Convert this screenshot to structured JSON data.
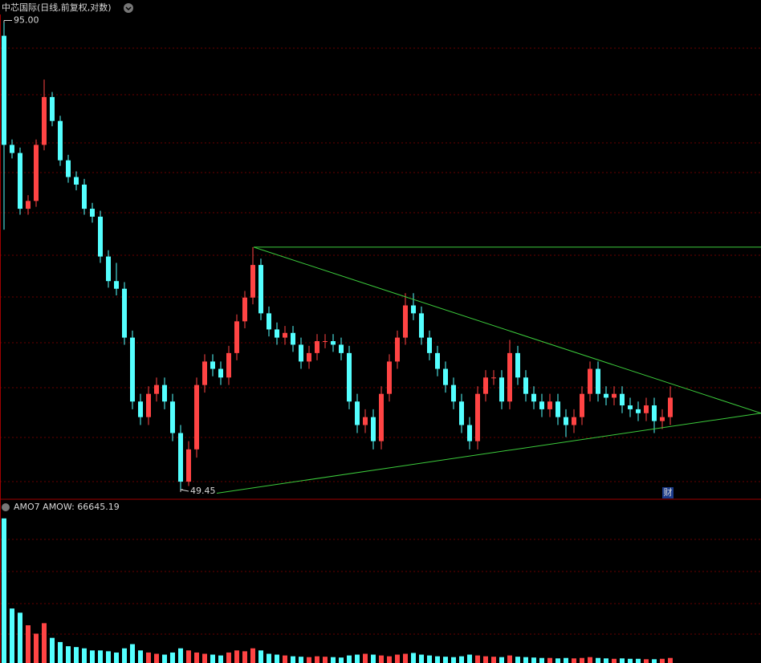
{
  "chart_data": {
    "type": "candlestick",
    "title": "中芯国际(日线,前复权,对数)",
    "log_scale": true,
    "ylim": [
      48.9,
      95.8
    ],
    "up_color": "#ff4444",
    "down_color": "#54ffff",
    "ohlc": [
      [
        93,
        95,
        71,
        79.9
      ],
      [
        79.9,
        80.5,
        78.4,
        79.0
      ],
      [
        79.0,
        79.6,
        72.5,
        73.1
      ],
      [
        73.1,
        74.5,
        72.5,
        73.9
      ],
      [
        73.9,
        80.5,
        73.3,
        79.9
      ],
      [
        79.9,
        87.5,
        79.3,
        85.4
      ],
      [
        85.4,
        86.0,
        82.0,
        82.6
      ],
      [
        82.6,
        83.2,
        77.6,
        78.2
      ],
      [
        78.2,
        78.8,
        75.8,
        76.4
      ],
      [
        76.4,
        77.0,
        75.0,
        75.6
      ],
      [
        75.6,
        76.2,
        72.5,
        73.1
      ],
      [
        73.1,
        73.7,
        71.7,
        72.3
      ],
      [
        72.3,
        72.9,
        67.8,
        68.4
      ],
      [
        68.4,
        69.0,
        65.5,
        66.1
      ],
      [
        66.1,
        67.8,
        64.8,
        65.4
      ],
      [
        65.4,
        66.0,
        60.5,
        61.1
      ],
      [
        61.1,
        61.7,
        55.3,
        55.9
      ],
      [
        55.9,
        56.5,
        54.1,
        54.7
      ],
      [
        54.7,
        57.1,
        54.1,
        56.5
      ],
      [
        56.5,
        57.8,
        55.9,
        57.2
      ],
      [
        57.2,
        57.8,
        55.3,
        55.9
      ],
      [
        55.9,
        56.5,
        52.9,
        53.5
      ],
      [
        53.5,
        54.1,
        49.45,
        50.0
      ],
      [
        50.0,
        52.9,
        49.7,
        52.3
      ],
      [
        52.3,
        57.8,
        51.7,
        57.2
      ],
      [
        57.2,
        59.7,
        56.6,
        59.1
      ],
      [
        59.1,
        59.7,
        57.9,
        58.5
      ],
      [
        58.5,
        59.1,
        57.2,
        57.8
      ],
      [
        57.8,
        60.4,
        57.2,
        59.8
      ],
      [
        59.8,
        63.1,
        59.2,
        62.5
      ],
      [
        62.5,
        65.2,
        61.9,
        64.6
      ],
      [
        64.6,
        69.3,
        64.0,
        67.6
      ],
      [
        67.6,
        68.2,
        62.6,
        63.2
      ],
      [
        63.2,
        63.8,
        61.2,
        61.8
      ],
      [
        61.8,
        62.4,
        60.5,
        61.1
      ],
      [
        61.1,
        62.1,
        60.5,
        61.5
      ],
      [
        61.5,
        62.1,
        59.9,
        60.5
      ],
      [
        60.5,
        61.1,
        58.5,
        59.1
      ],
      [
        59.1,
        60.4,
        58.5,
        59.8
      ],
      [
        59.8,
        61.4,
        59.2,
        60.8
      ],
      [
        60.8,
        61.4,
        60.2,
        60.8
      ],
      [
        60.8,
        61.4,
        59.9,
        60.5
      ],
      [
        60.5,
        61.1,
        59.2,
        59.8
      ],
      [
        59.8,
        60.4,
        55.3,
        55.9
      ],
      [
        55.9,
        56.5,
        53.5,
        54.1
      ],
      [
        54.1,
        55.3,
        53.5,
        54.7
      ],
      [
        54.7,
        55.3,
        52.3,
        52.9
      ],
      [
        52.9,
        57.1,
        52.3,
        56.5
      ],
      [
        56.5,
        59.7,
        55.9,
        59.1
      ],
      [
        59.1,
        61.7,
        58.5,
        61.1
      ],
      [
        61.1,
        65.0,
        60.5,
        63.9
      ],
      [
        63.9,
        65.0,
        62.6,
        63.2
      ],
      [
        63.2,
        63.8,
        60.5,
        61.1
      ],
      [
        61.1,
        61.7,
        59.2,
        59.8
      ],
      [
        59.8,
        60.4,
        57.9,
        58.5
      ],
      [
        58.5,
        59.1,
        56.6,
        57.2
      ],
      [
        57.2,
        57.8,
        55.3,
        55.9
      ],
      [
        55.9,
        56.5,
        53.5,
        54.1
      ],
      [
        54.1,
        54.7,
        52.3,
        52.9
      ],
      [
        52.9,
        57.1,
        52.3,
        56.5
      ],
      [
        56.5,
        58.4,
        55.9,
        57.8
      ],
      [
        57.8,
        58.4,
        57.2,
        57.8
      ],
      [
        57.8,
        58.4,
        55.3,
        55.9
      ],
      [
        55.9,
        60.9,
        55.3,
        59.8
      ],
      [
        59.8,
        60.4,
        57.2,
        57.8
      ],
      [
        57.8,
        58.4,
        55.9,
        56.5
      ],
      [
        56.5,
        57.1,
        55.3,
        55.9
      ],
      [
        55.9,
        56.5,
        54.7,
        55.3
      ],
      [
        55.3,
        56.5,
        54.7,
        55.9
      ],
      [
        55.9,
        56.5,
        54.1,
        54.7
      ],
      [
        54.7,
        55.3,
        53.2,
        54.1
      ],
      [
        54.1,
        55.3,
        53.5,
        54.7
      ],
      [
        54.7,
        57.1,
        54.1,
        56.5
      ],
      [
        56.5,
        59.1,
        55.9,
        58.5
      ],
      [
        58.5,
        59.1,
        55.9,
        56.5
      ],
      [
        56.5,
        57.1,
        55.6,
        56.2
      ],
      [
        56.2,
        57.1,
        55.6,
        56.5
      ],
      [
        56.5,
        57.1,
        55.0,
        55.6
      ],
      [
        55.6,
        56.2,
        54.7,
        55.3
      ],
      [
        55.3,
        55.9,
        54.4,
        55.0
      ],
      [
        55.0,
        56.2,
        54.4,
        55.6
      ],
      [
        55.6,
        56.2,
        53.5,
        54.4
      ],
      [
        54.4,
        55.3,
        53.8,
        54.7
      ],
      [
        54.7,
        57.1,
        54.1,
        56.2
      ]
    ],
    "annotations": [
      {
        "value": 95,
        "label": "95.00"
      },
      {
        "value": 49.45,
        "label": "49.45"
      }
    ],
    "trendlines": [
      {
        "color": "#3ccc3c",
        "points": [
          [
            31.1,
            69.3
          ],
          [
            94.3,
            69.3
          ]
        ]
      },
      {
        "color": "#3ccc3c",
        "points": [
          [
            31.1,
            69.3
          ],
          [
            94.3,
            55.0
          ]
        ]
      },
      {
        "color": "#3ccc3c",
        "points": [
          [
            26.5,
            49.2
          ],
          [
            94.3,
            55.0
          ]
        ]
      }
    ],
    "marker_text": "财",
    "volume": {
      "label": "AMO7 AMOW: 66645.19",
      "ylim": [
        0,
        360000
      ],
      "values": [
        345000,
        130000,
        120000,
        90000,
        70000,
        95000,
        60000,
        50000,
        40000,
        38000,
        35000,
        30000,
        30000,
        28000,
        25000,
        35000,
        45000,
        30000,
        25000,
        22000,
        20000,
        25000,
        35000,
        30000,
        25000,
        22000,
        20000,
        18000,
        25000,
        30000,
        28000,
        35000,
        30000,
        22000,
        20000,
        18000,
        16000,
        15000,
        14000,
        16000,
        15000,
        14000,
        13000,
        18000,
        20000,
        22000,
        20000,
        18000,
        16000,
        20000,
        22000,
        24000,
        20000,
        18000,
        16000,
        15000,
        14000,
        16000,
        20000,
        18000,
        16000,
        15000,
        14000,
        18000,
        15000,
        14000,
        13000,
        12000,
        12000,
        11000,
        12000,
        11000,
        12000,
        14000,
        12000,
        11000,
        10000,
        11000,
        10000,
        10000,
        9000,
        9000,
        10000,
        12000
      ]
    }
  }
}
